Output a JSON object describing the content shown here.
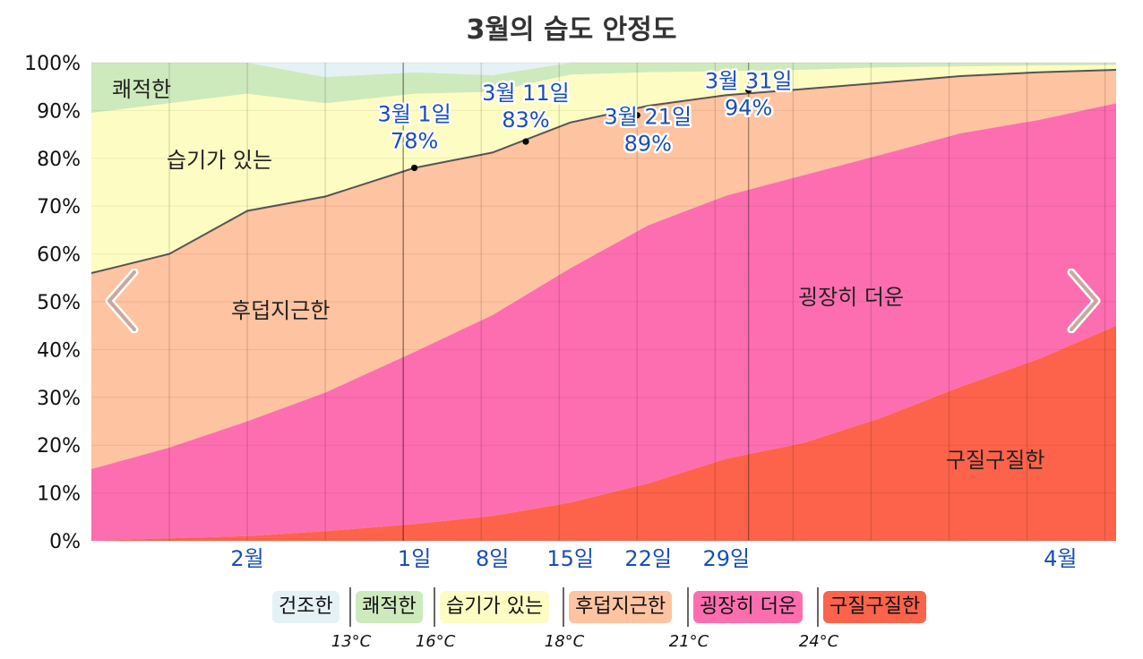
{
  "title": "3월의 습도 안정도",
  "colors": {
    "dry": "#e4f2f6",
    "comfortable": "#cdeabc",
    "humid": "#fdfdc3",
    "muggy": "#fec3a0",
    "oppressive": "#fd6eb0",
    "miserable": "#fc634a",
    "annotation": "#1a4fb3",
    "line": "#555555"
  },
  "nav": {
    "prev_icon": "chevron-left-icon",
    "next_icon": "chevron-right-icon"
  },
  "chart_data": {
    "type": "area",
    "stacked": true,
    "ylim": [
      0,
      100
    ],
    "y_ticks": [
      "0%",
      "10%",
      "20%",
      "30%",
      "40%",
      "50%",
      "60%",
      "70%",
      "80%",
      "90%",
      "100%"
    ],
    "x_ticks": [
      "2월",
      "1일",
      "8일",
      "15일",
      "22일",
      "29일",
      "4월"
    ],
    "x_tick_days": [
      -14,
      1,
      8,
      15,
      22,
      29,
      59
    ],
    "x_range_days": [
      -28,
      64
    ],
    "grid": true,
    "days": [
      -28,
      -21,
      -14,
      -7,
      1,
      8,
      15,
      22,
      29,
      36,
      43,
      50,
      57,
      64
    ],
    "series": [
      {
        "name": "건조한",
        "values": [
          0,
          0,
          0,
          0,
          0,
          0,
          0,
          0,
          0,
          0,
          0,
          0,
          0,
          0
        ]
      },
      {
        "name": "쾌적한",
        "values": [
          10.5,
          8.5,
          6.5,
          5.5,
          4.5,
          3.5,
          2.5,
          2.0,
          1.8,
          1.5,
          1.0,
          0.8,
          0.6,
          0.5
        ]
      },
      {
        "name": "습기가 있는",
        "values": [
          33.5,
          31.5,
          24.5,
          19.5,
          15.5,
          12.7,
          10.0,
          7.0,
          5.0,
          4.0,
          3.2,
          2.0,
          1.4,
          1.0
        ]
      },
      {
        "name": "후덥지근한",
        "values": [
          41.0,
          40.5,
          44.0,
          41.0,
          38.5,
          34.0,
          30.5,
          25.0,
          21.0,
          18.0,
          15.0,
          12.0,
          10.0,
          7.0
        ]
      },
      {
        "name": "굉장히 더운",
        "values": [
          15.0,
          19.0,
          24.0,
          29.0,
          36.0,
          42.0,
          49.0,
          54.0,
          55.0,
          56.0,
          55.0,
          53.0,
          50.0,
          46.5
        ]
      },
      {
        "name": "구질구질한",
        "values": [
          0,
          0.5,
          1.0,
          2.0,
          3.5,
          5.2,
          8.0,
          12.0,
          17.2,
          20.5,
          25.8,
          32.2,
          38.0,
          45.0
        ]
      }
    ],
    "annotations": [
      {
        "date": "3월 1일",
        "day": 1,
        "value": "78%",
        "y": 78
      },
      {
        "date": "3월 11일",
        "day": 11,
        "value": "83%",
        "y": 83.5
      },
      {
        "date": "3월 21일",
        "day": 21,
        "value": "89%",
        "y": 89
      },
      {
        "date": "3월 31일",
        "day": 31,
        "value": "94%",
        "y": 94.3
      }
    ],
    "zone_labels": [
      "쾌적한",
      "습기가 있는",
      "후덥지근한",
      "굉장히 더운",
      "구질구질한"
    ]
  },
  "legend": {
    "items": [
      "건조한",
      "쾌적한",
      "습기가 있는",
      "후덥지근한",
      "굉장히 더운",
      "구질구질한"
    ],
    "thresholds": [
      "13°C",
      "16°C",
      "18°C",
      "21°C",
      "24°C"
    ]
  }
}
